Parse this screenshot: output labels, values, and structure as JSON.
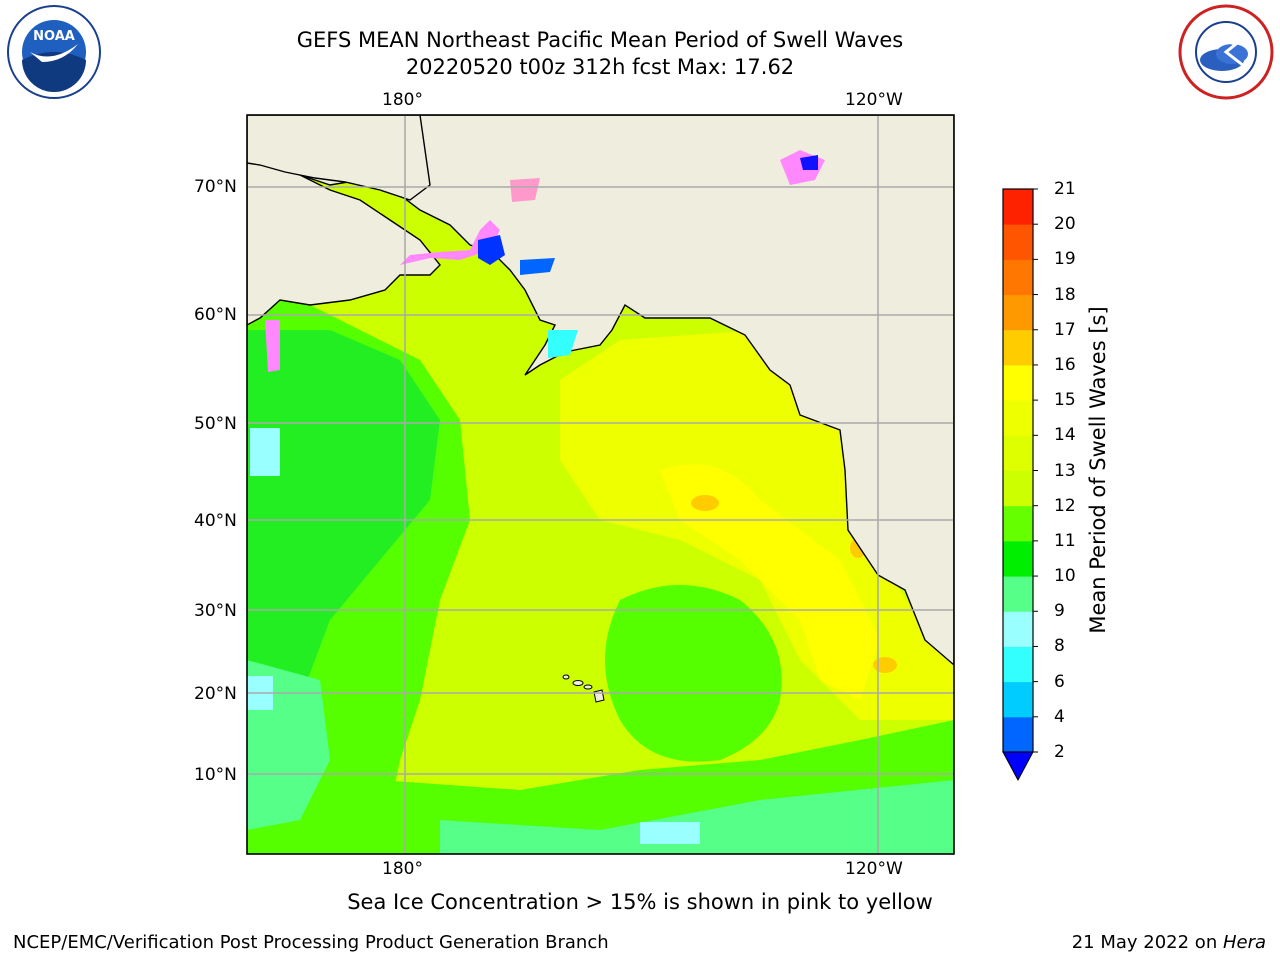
{
  "title": {
    "line1": "GEFS MEAN Northeast Pacific Mean Period of Swell Waves",
    "line2": "20220520 t00z 312h fcst   Max: 17.62"
  },
  "logos": {
    "left": "noara-logo",
    "right": "national-weather-service-logo"
  },
  "map": {
    "lon_labels": [
      "180°",
      "120°W"
    ],
    "lat_labels": [
      "70°N",
      "60°N",
      "50°N",
      "40°N",
      "30°N",
      "20°N",
      "10°N"
    ],
    "grid": true,
    "colors": {
      "land": "#efedde",
      "ocean_main": "#ccff00",
      "ocean_green": "#55ff00"
    }
  },
  "colorbar": {
    "title": "Mean Period of Swell Waves [s]",
    "levels": [
      "2",
      "4",
      "6",
      "8",
      "9",
      "10",
      "11",
      "12",
      "13",
      "14",
      "15",
      "16",
      "17",
      "18",
      "19",
      "20",
      "21"
    ],
    "colors": [
      "#0066ff",
      "#00ccff",
      "#33ffff",
      "#99ffff",
      "#55ff88",
      "#00ee00",
      "#66ff00",
      "#ccff00",
      "#ddff00",
      "#eeff00",
      "#ffff00",
      "#ffcc00",
      "#ff9900",
      "#ff7700",
      "#ff5500",
      "#ff2200"
    ],
    "extend_color": "#0000ff"
  },
  "note": "Sea Ice Concentration > 15% is shown in pink to yellow",
  "footer": {
    "left": "NCEP/EMC/Verification Post Processing Product Generation Branch",
    "date": "21 May 2022 on ",
    "host": "Hera"
  }
}
